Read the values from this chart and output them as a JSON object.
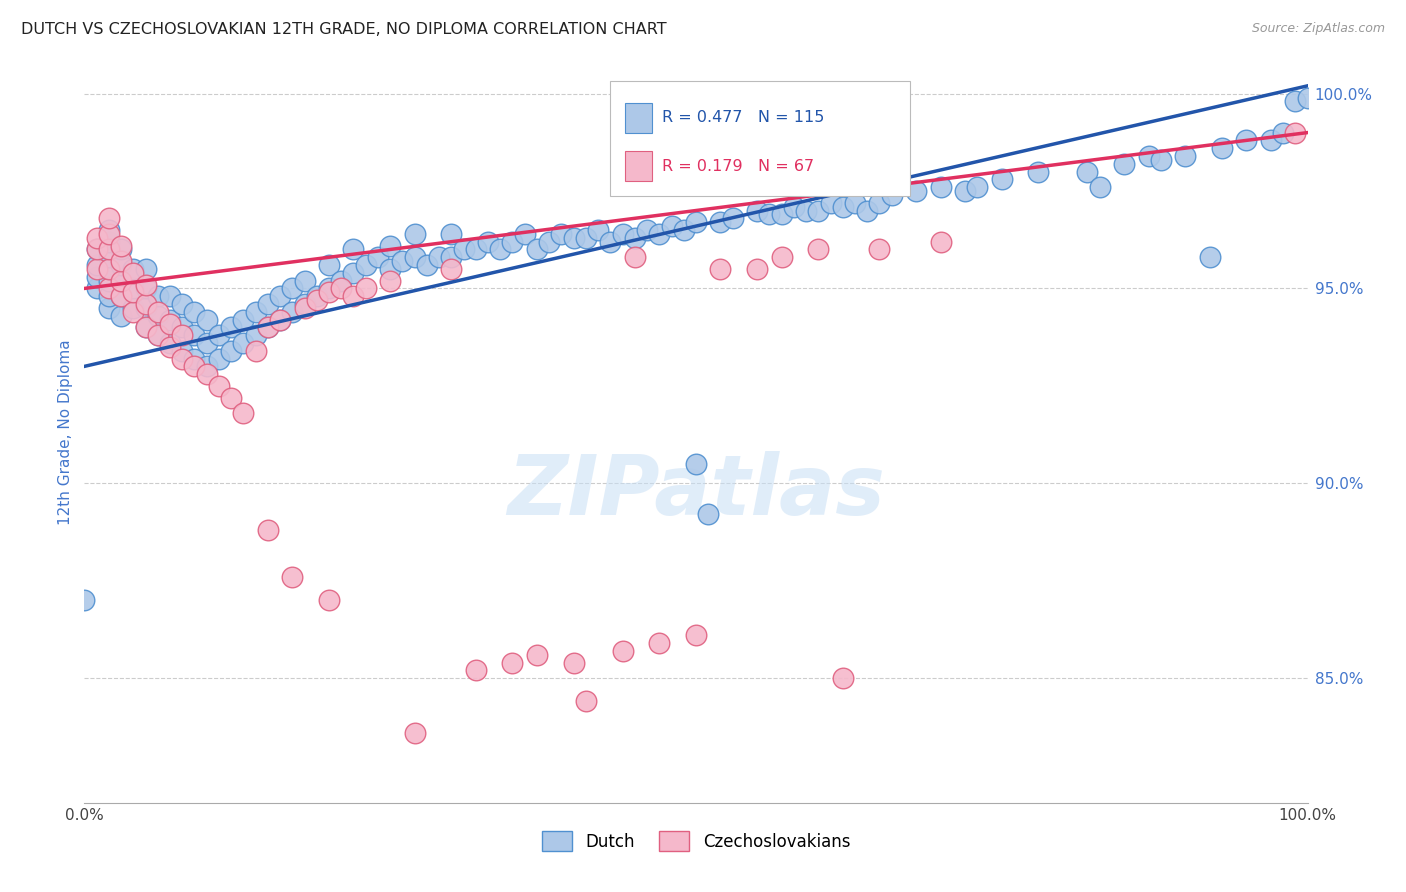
{
  "title": "DUTCH VS CZECHOSLOVAKIAN 12TH GRADE, NO DIPLOMA CORRELATION CHART",
  "source": "Source: ZipAtlas.com",
  "ylabel": "12th Grade, No Diploma",
  "watermark": "ZIPatlas",
  "dutch_color": "#adc8e8",
  "dutch_edge_color": "#5090d0",
  "dutch_line_color": "#2255aa",
  "czech_color": "#f5b8cb",
  "czech_edge_color": "#e06080",
  "czech_line_color": "#e03060",
  "right_ytick_vals": [
    85.0,
    90.0,
    95.0,
    100.0
  ],
  "xmin": 0.0,
  "xmax": 1.0,
  "ymin": 0.818,
  "ymax": 1.008,
  "dutch_trend_x": [
    0.0,
    1.0
  ],
  "dutch_trend_y": [
    0.93,
    1.002
  ],
  "czech_trend_x": [
    0.0,
    1.0
  ],
  "czech_trend_y": [
    0.95,
    0.99
  ],
  "dutch_scatter": [
    [
      0.01,
      0.95
    ],
    [
      0.01,
      0.953
    ],
    [
      0.01,
      0.956
    ],
    [
      0.01,
      0.96
    ],
    [
      0.02,
      0.945
    ],
    [
      0.02,
      0.948
    ],
    [
      0.02,
      0.952
    ],
    [
      0.02,
      0.955
    ],
    [
      0.02,
      0.958
    ],
    [
      0.02,
      0.962
    ],
    [
      0.02,
      0.965
    ],
    [
      0.03,
      0.943
    ],
    [
      0.03,
      0.948
    ],
    [
      0.03,
      0.952
    ],
    [
      0.03,
      0.956
    ],
    [
      0.03,
      0.96
    ],
    [
      0.04,
      0.945
    ],
    [
      0.04,
      0.95
    ],
    [
      0.04,
      0.955
    ],
    [
      0.05,
      0.94
    ],
    [
      0.05,
      0.945
    ],
    [
      0.05,
      0.95
    ],
    [
      0.05,
      0.955
    ],
    [
      0.06,
      0.938
    ],
    [
      0.06,
      0.943
    ],
    [
      0.06,
      0.948
    ],
    [
      0.07,
      0.936
    ],
    [
      0.07,
      0.942
    ],
    [
      0.07,
      0.948
    ],
    [
      0.08,
      0.934
    ],
    [
      0.08,
      0.94
    ],
    [
      0.08,
      0.946
    ],
    [
      0.09,
      0.932
    ],
    [
      0.09,
      0.938
    ],
    [
      0.09,
      0.944
    ],
    [
      0.1,
      0.93
    ],
    [
      0.1,
      0.936
    ],
    [
      0.1,
      0.942
    ],
    [
      0.11,
      0.932
    ],
    [
      0.11,
      0.938
    ],
    [
      0.12,
      0.934
    ],
    [
      0.12,
      0.94
    ],
    [
      0.13,
      0.936
    ],
    [
      0.13,
      0.942
    ],
    [
      0.14,
      0.938
    ],
    [
      0.14,
      0.944
    ],
    [
      0.15,
      0.94
    ],
    [
      0.15,
      0.946
    ],
    [
      0.16,
      0.942
    ],
    [
      0.16,
      0.948
    ],
    [
      0.17,
      0.944
    ],
    [
      0.17,
      0.95
    ],
    [
      0.18,
      0.946
    ],
    [
      0.18,
      0.952
    ],
    [
      0.19,
      0.948
    ],
    [
      0.2,
      0.95
    ],
    [
      0.2,
      0.956
    ],
    [
      0.21,
      0.952
    ],
    [
      0.22,
      0.954
    ],
    [
      0.22,
      0.96
    ],
    [
      0.23,
      0.956
    ],
    [
      0.24,
      0.958
    ],
    [
      0.25,
      0.955
    ],
    [
      0.25,
      0.961
    ],
    [
      0.26,
      0.957
    ],
    [
      0.27,
      0.958
    ],
    [
      0.27,
      0.964
    ],
    [
      0.28,
      0.956
    ],
    [
      0.29,
      0.958
    ],
    [
      0.3,
      0.958
    ],
    [
      0.3,
      0.964
    ],
    [
      0.31,
      0.96
    ],
    [
      0.32,
      0.96
    ],
    [
      0.33,
      0.962
    ],
    [
      0.34,
      0.96
    ],
    [
      0.35,
      0.962
    ],
    [
      0.36,
      0.964
    ],
    [
      0.37,
      0.96
    ],
    [
      0.38,
      0.962
    ],
    [
      0.39,
      0.964
    ],
    [
      0.4,
      0.963
    ],
    [
      0.41,
      0.963
    ],
    [
      0.42,
      0.965
    ],
    [
      0.43,
      0.962
    ],
    [
      0.44,
      0.964
    ],
    [
      0.45,
      0.963
    ],
    [
      0.46,
      0.965
    ],
    [
      0.47,
      0.964
    ],
    [
      0.48,
      0.966
    ],
    [
      0.49,
      0.965
    ],
    [
      0.5,
      0.967
    ],
    [
      0.5,
      0.905
    ],
    [
      0.51,
      0.892
    ],
    [
      0.52,
      0.967
    ],
    [
      0.53,
      0.968
    ],
    [
      0.55,
      0.97
    ],
    [
      0.56,
      0.969
    ],
    [
      0.57,
      0.969
    ],
    [
      0.58,
      0.971
    ],
    [
      0.59,
      0.97
    ],
    [
      0.6,
      0.97
    ],
    [
      0.61,
      0.972
    ],
    [
      0.62,
      0.971
    ],
    [
      0.63,
      0.972
    ],
    [
      0.64,
      0.97
    ],
    [
      0.65,
      0.972
    ],
    [
      0.66,
      0.974
    ],
    [
      0.68,
      0.975
    ],
    [
      0.7,
      0.976
    ],
    [
      0.72,
      0.975
    ],
    [
      0.73,
      0.976
    ],
    [
      0.75,
      0.978
    ],
    [
      0.78,
      0.98
    ],
    [
      0.82,
      0.98
    ],
    [
      0.83,
      0.976
    ],
    [
      0.85,
      0.982
    ],
    [
      0.87,
      0.984
    ],
    [
      0.88,
      0.983
    ],
    [
      0.9,
      0.984
    ],
    [
      0.92,
      0.958
    ],
    [
      0.93,
      0.986
    ],
    [
      0.95,
      0.988
    ],
    [
      0.97,
      0.988
    ],
    [
      0.98,
      0.99
    ],
    [
      0.99,
      0.998
    ],
    [
      1.0,
      0.999
    ],
    [
      0.0,
      0.87
    ]
  ],
  "czech_scatter": [
    [
      0.01,
      0.955
    ],
    [
      0.01,
      0.96
    ],
    [
      0.01,
      0.963
    ],
    [
      0.02,
      0.95
    ],
    [
      0.02,
      0.955
    ],
    [
      0.02,
      0.96
    ],
    [
      0.02,
      0.964
    ],
    [
      0.02,
      0.968
    ],
    [
      0.03,
      0.948
    ],
    [
      0.03,
      0.952
    ],
    [
      0.03,
      0.957
    ],
    [
      0.03,
      0.961
    ],
    [
      0.04,
      0.944
    ],
    [
      0.04,
      0.949
    ],
    [
      0.04,
      0.954
    ],
    [
      0.05,
      0.94
    ],
    [
      0.05,
      0.946
    ],
    [
      0.05,
      0.951
    ],
    [
      0.06,
      0.938
    ],
    [
      0.06,
      0.944
    ],
    [
      0.07,
      0.935
    ],
    [
      0.07,
      0.941
    ],
    [
      0.08,
      0.932
    ],
    [
      0.08,
      0.938
    ],
    [
      0.09,
      0.93
    ],
    [
      0.1,
      0.928
    ],
    [
      0.11,
      0.925
    ],
    [
      0.12,
      0.922
    ],
    [
      0.13,
      0.918
    ],
    [
      0.14,
      0.934
    ],
    [
      0.15,
      0.888
    ],
    [
      0.15,
      0.94
    ],
    [
      0.16,
      0.942
    ],
    [
      0.17,
      0.876
    ],
    [
      0.18,
      0.945
    ],
    [
      0.19,
      0.947
    ],
    [
      0.2,
      0.87
    ],
    [
      0.2,
      0.949
    ],
    [
      0.21,
      0.95
    ],
    [
      0.22,
      0.948
    ],
    [
      0.23,
      0.95
    ],
    [
      0.25,
      0.952
    ],
    [
      0.27,
      0.836
    ],
    [
      0.3,
      0.955
    ],
    [
      0.32,
      0.852
    ],
    [
      0.35,
      0.854
    ],
    [
      0.37,
      0.856
    ],
    [
      0.4,
      0.854
    ],
    [
      0.41,
      0.844
    ],
    [
      0.44,
      0.857
    ],
    [
      0.45,
      0.958
    ],
    [
      0.47,
      0.859
    ],
    [
      0.5,
      0.861
    ],
    [
      0.52,
      0.955
    ],
    [
      0.55,
      0.955
    ],
    [
      0.57,
      0.958
    ],
    [
      0.6,
      0.96
    ],
    [
      0.62,
      0.85
    ],
    [
      0.65,
      0.96
    ],
    [
      0.7,
      0.962
    ],
    [
      0.99,
      0.99
    ]
  ]
}
